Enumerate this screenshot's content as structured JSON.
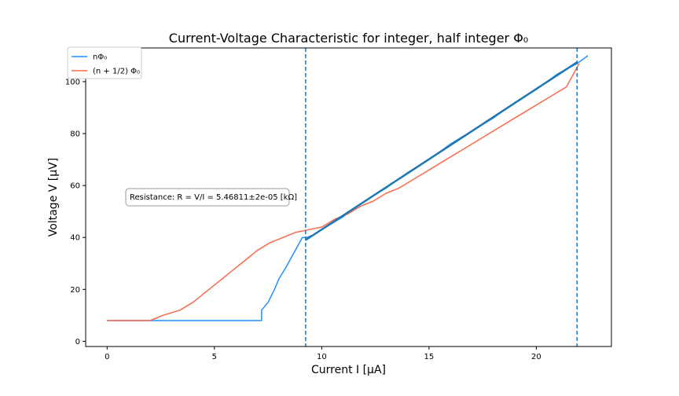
{
  "chart_data": {
    "type": "line",
    "title": "Current-Voltage Characteristic for integer, half integer Φ₀",
    "xlabel": "Current I [μA]",
    "ylabel": "Voltage V [μV]",
    "xlim": [
      -1,
      23.5
    ],
    "ylim": [
      -2,
      113
    ],
    "x_ticks": [
      0,
      5,
      10,
      15,
      20
    ],
    "y_ticks": [
      0,
      20,
      40,
      60,
      80,
      100
    ],
    "grid": false,
    "legend_position": "top-left",
    "legend": [
      {
        "label": "nΦ₀",
        "color": "#1e90ff"
      },
      {
        "label": "(n + 1/2) Φ₀",
        "color": "#fa6a4a"
      }
    ],
    "vlines": [
      9.25,
      21.9
    ],
    "annotation": "Resistance: R = V/I = 5.46811±2e-05 [kΩ]",
    "series": [
      {
        "name": "nΦ₀",
        "color": "#1e90ff",
        "x": [
          0,
          1.5,
          3,
          4.5,
          6,
          7.2,
          7.2,
          7.5,
          7.8,
          8.0,
          8.3,
          8.5,
          8.7,
          8.9,
          9.1,
          9.3,
          9.6,
          10.2,
          11,
          12,
          13,
          14,
          15,
          16,
          17,
          18,
          19,
          20,
          21,
          21.9,
          22.4
        ],
        "y": [
          8,
          8,
          8,
          8,
          8,
          8,
          12,
          15,
          20,
          24,
          28,
          31,
          34,
          37,
          40,
          40,
          41,
          44,
          48,
          54,
          59,
          65,
          70,
          76,
          81,
          86,
          92,
          97,
          103,
          107,
          110
        ]
      },
      {
        "name": "(n + 1/2) Φ₀",
        "color": "#fa6a4a",
        "x": [
          0,
          2,
          2.6,
          3.4,
          4,
          4.6,
          5.2,
          5.8,
          6.4,
          7.0,
          7.6,
          8.2,
          8.8,
          9.4,
          10,
          10.6,
          11.2,
          11.8,
          12.4,
          13,
          13.6,
          14.2,
          14.8,
          15.4,
          16,
          16.6,
          17.2,
          17.8,
          18.4,
          19,
          19.6,
          20.2,
          20.8,
          21.4,
          22
        ],
        "y": [
          8,
          8,
          10,
          12,
          15,
          19,
          23,
          27,
          31,
          35,
          38,
          40,
          42,
          43,
          44,
          47,
          49,
          52,
          54,
          57,
          59,
          62,
          65,
          68,
          71,
          74,
          77,
          80,
          83,
          86,
          89,
          92,
          95,
          98,
          107
        ]
      },
      {
        "name": "fit",
        "color": "#1f77b4",
        "x": [
          9.25,
          21.9
        ],
        "y": [
          39,
          107.5
        ]
      }
    ]
  }
}
